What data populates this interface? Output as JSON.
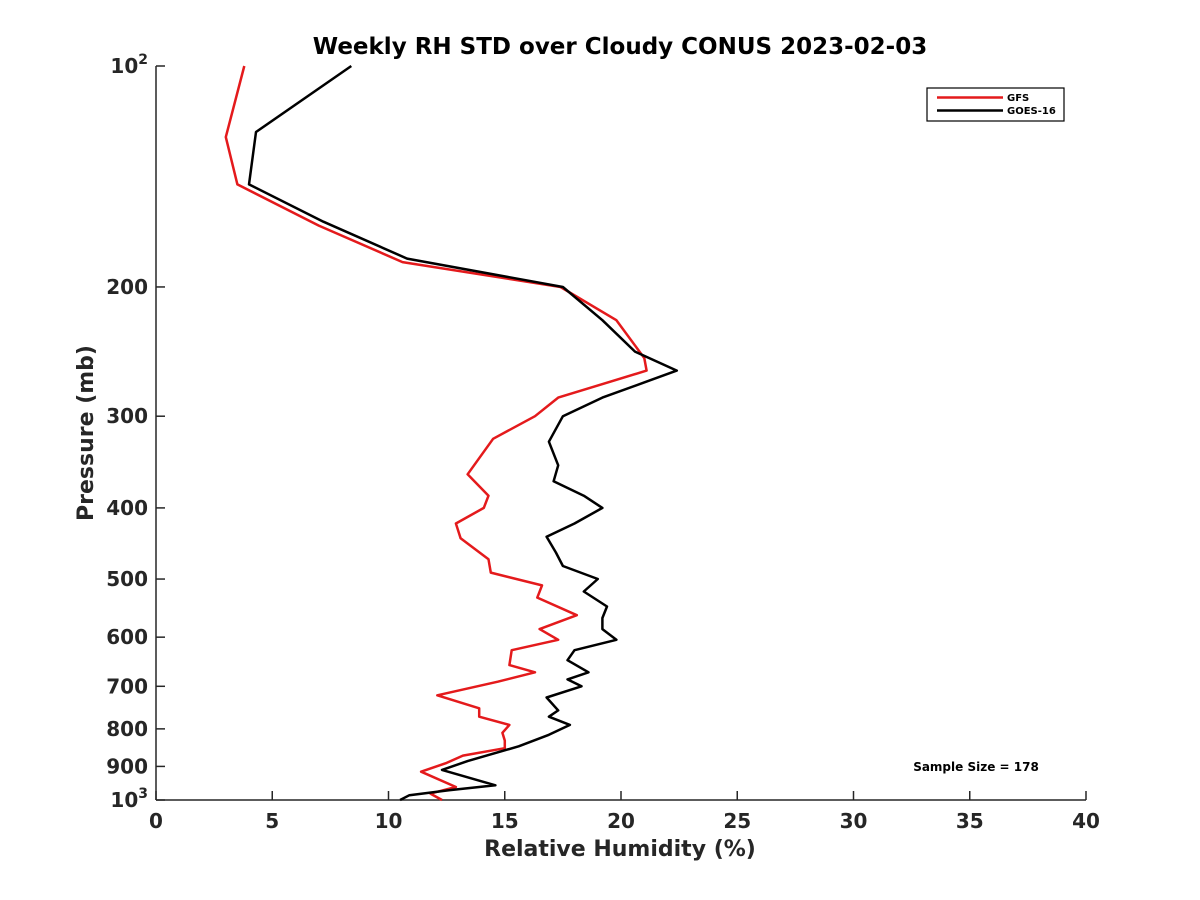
{
  "chart_data": {
    "type": "line",
    "title": "Weekly RH STD over Cloudy CONUS 2023-02-03",
    "xlabel": "Relative Humidity (%)",
    "ylabel": "Pressure (mb)",
    "xlim": [
      0,
      40
    ],
    "ylim": [
      100,
      1000
    ],
    "y_scale": "log",
    "y_reversed": true,
    "grid": false,
    "legend_position": "top-right",
    "x_ticks": [
      "0",
      "5",
      "10",
      "15",
      "20",
      "25",
      "30",
      "35",
      "40"
    ],
    "x_tick_values": [
      0,
      5,
      10,
      15,
      20,
      25,
      30,
      35,
      40
    ],
    "y_ticks": [
      {
        "value": 100,
        "base": "10",
        "exp": "2"
      },
      {
        "value": 200,
        "label": "200"
      },
      {
        "value": 300,
        "label": "300"
      },
      {
        "value": 400,
        "label": "400"
      },
      {
        "value": 500,
        "label": "500"
      },
      {
        "value": 600,
        "label": "600"
      },
      {
        "value": 700,
        "label": "700"
      },
      {
        "value": 800,
        "label": "800"
      },
      {
        "value": 900,
        "label": "900"
      },
      {
        "value": 1000,
        "base": "10",
        "exp": "3"
      }
    ],
    "annotation": "Sample Size = 178",
    "series": [
      {
        "name": "GFS",
        "color": "#e41a1c",
        "points": [
          [
            3.8,
            100
          ],
          [
            3.0,
            125
          ],
          [
            3.5,
            145
          ],
          [
            7.0,
            165
          ],
          [
            10.6,
            185
          ],
          [
            17.4,
            200
          ],
          [
            19.8,
            222
          ],
          [
            21.0,
            250
          ],
          [
            21.1,
            260
          ],
          [
            17.3,
            283
          ],
          [
            16.3,
            300
          ],
          [
            14.5,
            322
          ],
          [
            13.4,
            360
          ],
          [
            14.3,
            385
          ],
          [
            14.1,
            400
          ],
          [
            12.9,
            420
          ],
          [
            13.1,
            440
          ],
          [
            14.3,
            470
          ],
          [
            14.4,
            490
          ],
          [
            16.6,
            510
          ],
          [
            16.4,
            530
          ],
          [
            18.1,
            560
          ],
          [
            16.5,
            585
          ],
          [
            17.3,
            605
          ],
          [
            15.3,
            625
          ],
          [
            15.2,
            655
          ],
          [
            16.3,
            670
          ],
          [
            14.7,
            690
          ],
          [
            12.1,
            720
          ],
          [
            13.9,
            750
          ],
          [
            13.9,
            770
          ],
          [
            15.2,
            790
          ],
          [
            14.9,
            810
          ],
          [
            15.0,
            830
          ],
          [
            15.0,
            850
          ],
          [
            13.2,
            870
          ],
          [
            12.5,
            890
          ],
          [
            11.4,
            915
          ],
          [
            12.9,
            960
          ],
          [
            11.8,
            980
          ],
          [
            12.3,
            1000
          ]
        ]
      },
      {
        "name": "GOES-16",
        "color": "#000000",
        "points": [
          [
            8.4,
            100
          ],
          [
            4.3,
            123
          ],
          [
            4.0,
            145
          ],
          [
            7.2,
            163
          ],
          [
            10.8,
            183
          ],
          [
            17.5,
            200
          ],
          [
            19.2,
            222
          ],
          [
            20.6,
            245
          ],
          [
            22.4,
            260
          ],
          [
            19.2,
            283
          ],
          [
            17.5,
            300
          ],
          [
            16.9,
            325
          ],
          [
            17.3,
            350
          ],
          [
            17.1,
            368
          ],
          [
            18.4,
            385
          ],
          [
            19.2,
            400
          ],
          [
            18.0,
            420
          ],
          [
            16.8,
            438
          ],
          [
            17.2,
            460
          ],
          [
            17.5,
            480
          ],
          [
            19.0,
            500
          ],
          [
            18.4,
            520
          ],
          [
            19.4,
            545
          ],
          [
            19.2,
            565
          ],
          [
            19.2,
            585
          ],
          [
            19.8,
            605
          ],
          [
            18.0,
            625
          ],
          [
            17.7,
            645
          ],
          [
            18.6,
            670
          ],
          [
            17.7,
            685
          ],
          [
            18.3,
            700
          ],
          [
            16.8,
            725
          ],
          [
            17.3,
            755
          ],
          [
            16.9,
            770
          ],
          [
            17.8,
            790
          ],
          [
            16.9,
            815
          ],
          [
            15.6,
            845
          ],
          [
            13.4,
            885
          ],
          [
            12.3,
            910
          ],
          [
            14.6,
            955
          ],
          [
            12.6,
            970
          ],
          [
            10.9,
            985
          ],
          [
            10.5,
            1000
          ]
        ]
      }
    ]
  }
}
